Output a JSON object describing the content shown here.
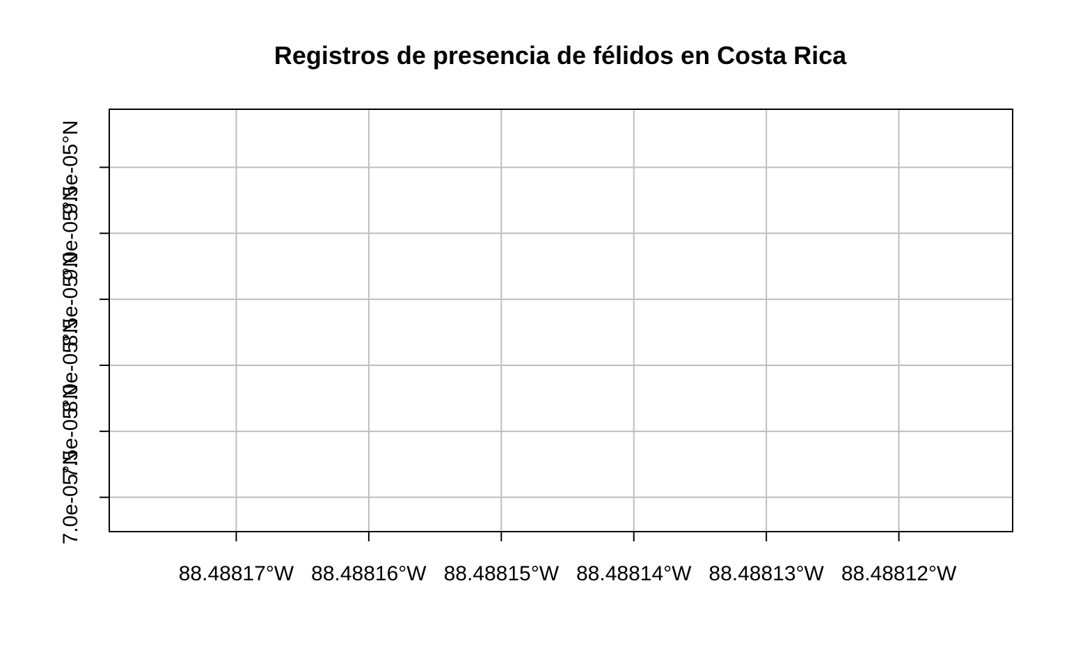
{
  "chart_data": {
    "type": "scatter",
    "title": "Registros de presencia de félidos en Costa Rica",
    "xlabel": "",
    "ylabel": "",
    "x": {
      "ticks": [
        -88.48817,
        -88.48816,
        -88.48815,
        -88.48814,
        -88.48813,
        -88.48812
      ],
      "tick_labels": [
        "88.48817°W",
        "88.48816°W",
        "88.48815°W",
        "88.48814°W",
        "88.48813°W",
        "88.48812°W"
      ],
      "range": [
        -88.488179583,
        -88.488111417
      ]
    },
    "y": {
      "ticks": [
        7e-05,
        7.5e-05,
        8e-05,
        8.5e-05,
        9e-05,
        9.5e-05
      ],
      "tick_labels": [
        "7.0e-05°N",
        "7.5e-05°N",
        "8.0e-05°N",
        "8.5e-05°N",
        "9.0e-05°N",
        "9.5e-05°N"
      ],
      "range": [
        6.74e-05,
        9.94e-05
      ]
    },
    "grid": true,
    "series": [
      {
        "values": []
      }
    ]
  },
  "colors": {
    "grid": "#bebebe",
    "axis": "#000000",
    "background": "#ffffff"
  }
}
